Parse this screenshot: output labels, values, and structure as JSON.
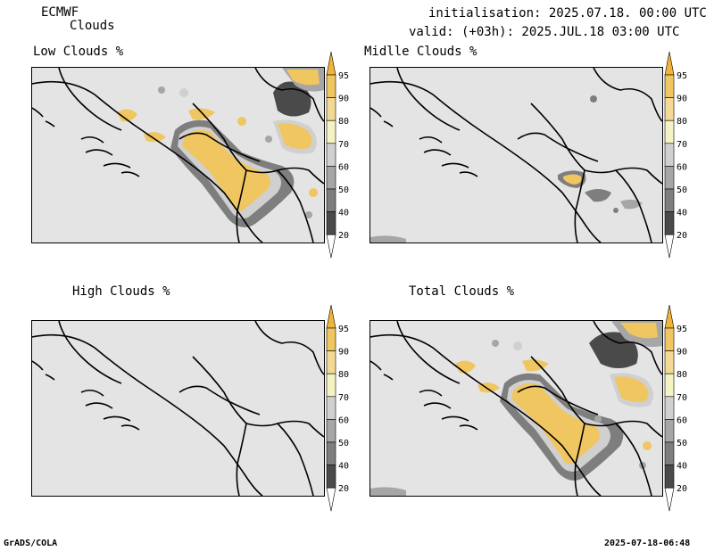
{
  "header": {
    "model": "ECMWF",
    "product": "Clouds",
    "initialisation": "initialisation: 2025.07.18. 00:00 UTC",
    "valid": "valid: (+03h): 2025.JUL.18 03:00 UTC"
  },
  "footer": {
    "left": "GrADS/COLA",
    "right": "2025-07-18-06:48"
  },
  "panels": [
    {
      "title": "Low Clouds %"
    },
    {
      "title": "Midlle Clouds %"
    },
    {
      "title": "High Clouds %"
    },
    {
      "title": "Total Clouds %"
    }
  ],
  "colorbar": {
    "levels": [
      "95",
      "90",
      "80",
      "70",
      "60",
      "50",
      "40",
      "20"
    ],
    "colors": {
      "c20": "#ffffff",
      "c40": "#4a4a4a",
      "c50": "#7e7e7e",
      "c60": "#a6a6a6",
      "c70": "#d0d0d0",
      "c80": "#f5f3c3",
      "c90": "#f2d995",
      "c95": "#f0c660",
      "top": "#f0b43a",
      "map_bg": "#e4e4e4"
    }
  }
}
